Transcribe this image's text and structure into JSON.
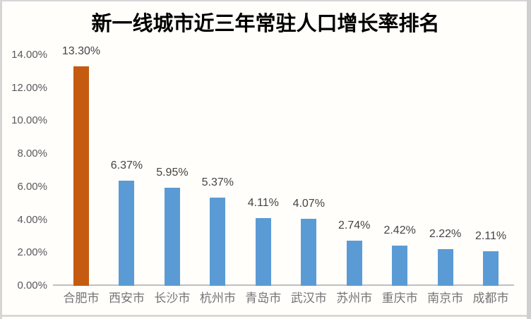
{
  "title": "新一线城市近三年常驻人口增长率排名",
  "chart_data": {
    "type": "bar",
    "title": "新一线城市近三年常驻人口增长率排名",
    "categories": [
      "合肥市",
      "西安市",
      "长沙市",
      "杭州市",
      "青岛市",
      "武汉市",
      "苏州市",
      "重庆市",
      "南京市",
      "成都市"
    ],
    "values": [
      13.3,
      6.37,
      5.95,
      5.37,
      4.11,
      4.07,
      2.74,
      2.42,
      2.22,
      2.11
    ],
    "data_labels": [
      "13.30%",
      "6.37%",
      "5.95%",
      "5.37%",
      "4.11%",
      "4.07%",
      "2.74%",
      "2.42%",
      "2.22%",
      "2.11%"
    ],
    "xlabel": "",
    "ylabel": "",
    "ylim": [
      0,
      14
    ],
    "ytick_step": 2,
    "ytick_labels": [
      "0.00%",
      "2.00%",
      "4.00%",
      "6.00%",
      "8.00%",
      "10.00%",
      "12.00%",
      "14.00%"
    ],
    "grid": false,
    "legend": false,
    "highlight_index": 0
  },
  "colors": {
    "bar": "#5b9bd5",
    "highlight_bar": "#c55a11",
    "axis_line": "#bfbfbf",
    "tick_text": "#595959",
    "data_label_text": "#444444",
    "category_text": "#757575",
    "title_text": "#000000"
  }
}
